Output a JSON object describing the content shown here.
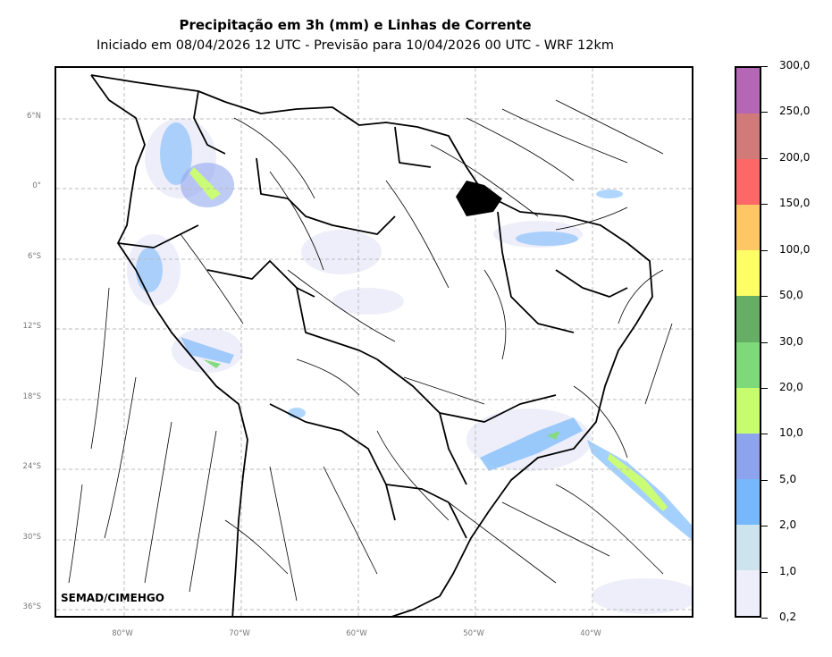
{
  "title": "Precipitação em 3h (mm) e Linhas de Corrente",
  "subtitle": "Iniciado em 08/04/2026 12 UTC - Previsão para 10/04/2026 00 UTC - WRF 12km",
  "credit": "SEMAD/CIMEHGO",
  "lat_labels": [
    "6°N",
    "0°",
    "6°S",
    "12°S",
    "18°S",
    "24°S",
    "30°S",
    "36°S"
  ],
  "lon_labels": [
    "80°W",
    "70°W",
    "60°W",
    "50°W",
    "40°W"
  ],
  "colorbar": {
    "labels": [
      "0,2",
      "1,0",
      "2,0",
      "5,0",
      "10,0",
      "20,0",
      "30,0",
      "50,0",
      "100,0",
      "150,0",
      "200,0",
      "250,0",
      "300,0"
    ],
    "colors": [
      "#eeeefa",
      "#cde3ee",
      "#76b8fb",
      "#8ea3ee",
      "#c8fc6f",
      "#7ed97b",
      "#66ad66",
      "#fdfd66",
      "#fec665",
      "#fd6767",
      "#d17a7a",
      "#b467b4"
    ]
  }
}
